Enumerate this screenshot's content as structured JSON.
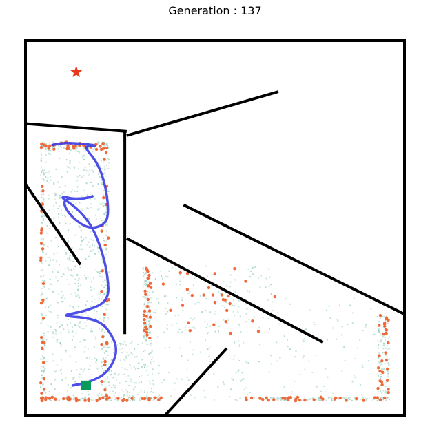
{
  "title": "Generation : 137",
  "chart_data": {
    "type": "scatter",
    "title": "Generation : 137",
    "xlabel": "",
    "ylabel": "",
    "xlim": [
      0,
      100
    ],
    "ylim": [
      0,
      100
    ],
    "grid": false,
    "colors": {
      "frame": "#000000",
      "goal": "#e8391a",
      "start": "#0a9a5a",
      "path": "#3b3be6",
      "explored": "#8ccab5",
      "elite": "#f0693a"
    },
    "markers": {
      "goal": {
        "symbol": "star-icon",
        "x": 13.4,
        "y": 91.6
      },
      "start": {
        "symbol": "square",
        "x": 16.0,
        "y": 8.1
      }
    },
    "walls": [
      [
        [
          0,
          77.9
        ],
        [
          26.7,
          75.8
        ]
      ],
      [
        [
          26.2,
          75.8
        ],
        [
          26.2,
          21.8
        ]
      ],
      [
        [
          26.7,
          74.7
        ],
        [
          66.7,
          86.4
        ]
      ],
      [
        [
          0,
          61.8
        ],
        [
          14.5,
          40.3
        ]
      ],
      [
        [
          26.7,
          47.3
        ],
        [
          78.5,
          19.6
        ]
      ],
      [
        [
          41.7,
          56.2
        ],
        [
          100,
          27.1
        ]
      ],
      [
        [
          36.7,
          0
        ],
        [
          53.1,
          18.0
        ]
      ]
    ],
    "best_path": [
      [
        7.1,
        72.2
      ],
      [
        9.5,
        72.7
      ],
      [
        12.5,
        72.7
      ],
      [
        16.3,
        72.4
      ],
      [
        19.2,
        71.9
      ],
      [
        15.0,
        72.2
      ],
      [
        19.0,
        67.6
      ],
      [
        21.3,
        60.8
      ],
      [
        22.0,
        53.3
      ],
      [
        20.5,
        50.7
      ],
      [
        16.5,
        49.8
      ],
      [
        11.5,
        53.5
      ],
      [
        9.5,
        57.9
      ],
      [
        16.0,
        57.9
      ],
      [
        18.5,
        58.8
      ],
      [
        14.0,
        57.5
      ],
      [
        8.5,
        58.8
      ],
      [
        13.5,
        55.5
      ],
      [
        17.5,
        50.7
      ],
      [
        20.0,
        44.5
      ],
      [
        21.7,
        37.6
      ],
      [
        22.0,
        30.5
      ],
      [
        15.5,
        27.8
      ],
      [
        8.9,
        26.7
      ],
      [
        17.8,
        26.0
      ],
      [
        21.7,
        23.5
      ],
      [
        24.6,
        17.5
      ],
      [
        21.7,
        11.5
      ],
      [
        17.0,
        9.0
      ],
      [
        12.5,
        8.1
      ]
    ],
    "explored_seed": 137,
    "explored_count": 1800,
    "elite_count": 240
  }
}
